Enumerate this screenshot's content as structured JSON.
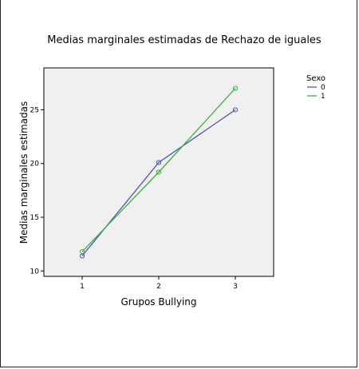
{
  "chart_data": {
    "type": "line",
    "title": "Medias marginales estimadas de Rechazo de iguales",
    "xlabel": "Grupos Bullying",
    "ylabel": "Medias marginales estimadas",
    "categories": [
      "1",
      "2",
      "3"
    ],
    "xlim": [
      0.5,
      3.5
    ],
    "ylim": [
      9.5,
      28.9
    ],
    "yticks": [
      10,
      15,
      20,
      25
    ],
    "grid": false,
    "legend_title": "Sexo",
    "legend_position": "top-right",
    "series": [
      {
        "name": "0",
        "color": "#4a55b5",
        "values": [
          11.4,
          20.1,
          25.0
        ]
      },
      {
        "name": "1",
        "color": "#33b533",
        "values": [
          11.8,
          19.2,
          27.0
        ]
      }
    ]
  }
}
